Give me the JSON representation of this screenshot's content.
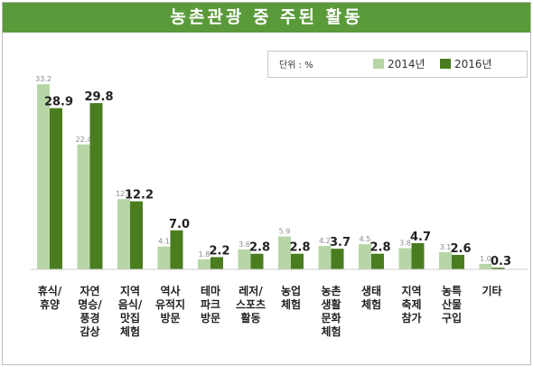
{
  "title": "농촌관광 중 주된 활동",
  "legend": {
    "unit": "단위 : %",
    "items": [
      {
        "label": "2014년",
        "color": "#b7d6a6"
      },
      {
        "label": "2016년",
        "color": "#4a7d1f"
      }
    ]
  },
  "colors": {
    "header": "#5a9a3a",
    "bar_2014": "#b7d6a6",
    "bar_2016": "#4a7d1f"
  },
  "chart_data": {
    "type": "bar",
    "categories": [
      [
        "휴식/",
        "휴양"
      ],
      [
        "자연",
        "명승/",
        "풍경",
        "감상"
      ],
      [
        "지역",
        "음식/",
        "맛집",
        "체험"
      ],
      [
        "역사",
        "유적지",
        "방문"
      ],
      [
        "테마",
        "파크",
        "방문"
      ],
      [
        "레저/",
        "스포츠",
        "활동"
      ],
      [
        "농업",
        "체험"
      ],
      [
        "농촌",
        "생활",
        "문화",
        "체험"
      ],
      [
        "생태",
        "체험"
      ],
      [
        "지역",
        "축제",
        "참가"
      ],
      [
        "농특",
        "산물",
        "구입"
      ],
      [
        "기타"
      ]
    ],
    "series": [
      {
        "name": "2014년",
        "values": [
          33.2,
          22.4,
          12.6,
          4.1,
          1.8,
          3.6,
          5.9,
          4.2,
          4.5,
          3.8,
          3.1,
          1.0
        ]
      },
      {
        "name": "2016년",
        "values": [
          28.9,
          29.8,
          12.2,
          7.0,
          2.2,
          2.8,
          2.8,
          3.7,
          2.8,
          4.7,
          2.6,
          0.3
        ]
      }
    ],
    "ylim": [
      0,
      35
    ],
    "unit": "%",
    "grid": false,
    "legend_position": "top-right"
  }
}
